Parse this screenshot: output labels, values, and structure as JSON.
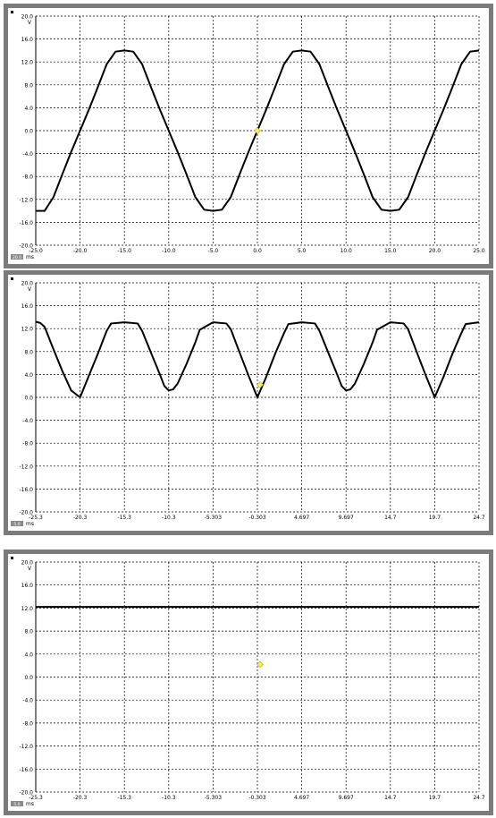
{
  "chart_data": [
    {
      "type": "line",
      "ylabel": "V",
      "xunit": "ms",
      "xlim": [
        -25.0,
        25.0
      ],
      "ylim": [
        -20.0,
        20.0
      ],
      "yticks": [
        "20.0",
        "16.0",
        "12.0",
        "8.0",
        "4.0",
        "0.0",
        "-4.0",
        "-8.0",
        "-12.0",
        "-16.0",
        "-20.0"
      ],
      "xticks": [
        "-25.0",
        "-20.0",
        "-15.0",
        "-10.0",
        "-5.0",
        "0.0",
        "5.0",
        "10.0",
        "15.0",
        "20.0",
        "25.0"
      ],
      "grid": true,
      "cursor": {
        "x": 0.0,
        "y": 0.0
      },
      "scale_badge": "20.0",
      "series": [
        {
          "x": [
            -25.0,
            -24.0,
            -23.0,
            -22.0,
            -21.0,
            -20.0,
            -19.0,
            -18.0,
            -17.0,
            -16.0,
            -15.0,
            -14.0,
            -13.0,
            -12.0,
            -11.0,
            -10.0,
            -9.0,
            -8.0,
            -7.0,
            -6.0,
            -5.0,
            -4.0,
            -3.0,
            -2.0,
            -1.0,
            0.0,
            1.0,
            2.0,
            3.0,
            4.0,
            5.0,
            6.0,
            7.0,
            8.0,
            9.0,
            10.0,
            11.0,
            12.0,
            13.0,
            14.0,
            15.0,
            16.0,
            17.0,
            18.0,
            19.0,
            20.0,
            21.0,
            22.0,
            23.0,
            24.0,
            25.0
          ],
          "y": [
            -14.0,
            -14.0,
            -11.6,
            -7.6,
            -3.7,
            0.0,
            3.7,
            7.6,
            11.6,
            13.8,
            14.0,
            13.8,
            11.6,
            7.6,
            3.7,
            0.0,
            -3.7,
            -7.6,
            -11.6,
            -13.8,
            -14.0,
            -13.8,
            -11.6,
            -7.6,
            -3.7,
            0.0,
            3.7,
            7.6,
            11.6,
            13.8,
            14.0,
            13.8,
            11.6,
            7.6,
            3.7,
            0.0,
            -3.7,
            -7.6,
            -11.6,
            -13.8,
            -14.0,
            -13.8,
            -11.6,
            -7.6,
            -3.7,
            0.0,
            3.7,
            7.6,
            11.6,
            13.8,
            14.0
          ]
        }
      ]
    },
    {
      "type": "line",
      "ylabel": "V",
      "xunit": "ms",
      "xlim": [
        -25.3,
        24.7
      ],
      "ylim": [
        -20.0,
        20.0
      ],
      "yticks": [
        "20.0",
        "16.0",
        "12.0",
        "8.0",
        "4.0",
        "0.0",
        "-4.0",
        "-8.0",
        "-12.0",
        "-16.0",
        "-20.0"
      ],
      "xticks": [
        "-25.3",
        "-20.3",
        "-15.3",
        "-10.3",
        "-5.303",
        "-0.303",
        "4.697",
        "9.697",
        "14.7",
        "19.7",
        "24.7"
      ],
      "grid": true,
      "cursor": {
        "x": 0.0,
        "y": 2.2
      },
      "scale_badge": "5.0",
      "series": [
        {
          "x": [
            -25.3,
            -24.8,
            -24.3,
            -23.3,
            -22.3,
            -21.3,
            -20.3,
            -19.3,
            -18.3,
            -17.3,
            -16.8,
            -15.3,
            -13.8,
            -13.3,
            -12.3,
            -11.3,
            -10.8,
            -10.3,
            -9.8,
            -9.3,
            -8.3,
            -7.3,
            -6.8,
            -5.3,
            -3.8,
            -3.3,
            -2.3,
            -1.3,
            -0.3,
            0.7,
            1.7,
            2.7,
            3.2,
            4.7,
            6.2,
            6.7,
            7.7,
            8.7,
            9.2,
            9.7,
            10.2,
            10.7,
            11.7,
            12.7,
            13.2,
            14.7,
            16.2,
            16.7,
            17.7,
            18.7,
            19.7,
            20.7,
            21.7,
            22.7,
            23.2,
            24.7
          ],
          "y": [
            13.2,
            13.0,
            12.3,
            8.4,
            4.6,
            1.2,
            0.0,
            3.8,
            7.6,
            11.6,
            12.9,
            13.1,
            12.9,
            11.6,
            7.8,
            4.0,
            2.0,
            1.2,
            1.4,
            2.4,
            5.8,
            9.6,
            11.8,
            13.1,
            12.9,
            11.9,
            7.8,
            3.8,
            0.0,
            3.6,
            7.6,
            11.2,
            12.8,
            13.1,
            12.9,
            11.6,
            7.8,
            4.0,
            2.0,
            1.2,
            1.4,
            2.4,
            5.8,
            9.6,
            11.8,
            13.1,
            12.9,
            11.9,
            7.8,
            3.8,
            0.0,
            3.6,
            7.6,
            11.2,
            12.8,
            13.1
          ]
        }
      ]
    },
    {
      "type": "line",
      "ylabel": "V",
      "xunit": "ms",
      "xlim": [
        -25.3,
        24.7
      ],
      "ylim": [
        -20.0,
        20.0
      ],
      "yticks": [
        "20.0",
        "16.0",
        "12.0",
        "8.0",
        "4.0",
        "0.0",
        "-4.0",
        "-8.0",
        "-12.0",
        "-16.0",
        "-20.0"
      ],
      "xticks": [
        "-25.3",
        "-20.3",
        "-15.3",
        "-10.3",
        "-5.303",
        "-0.303",
        "4.697",
        "9.697",
        "14.7",
        "19.7",
        "24.7"
      ],
      "grid": true,
      "cursor": {
        "x": 0.0,
        "y": 2.2
      },
      "scale_badge": "5.0",
      "series": [
        {
          "x": [
            -25.3,
            24.7
          ],
          "y": [
            12.2,
            12.2
          ]
        }
      ]
    }
  ]
}
